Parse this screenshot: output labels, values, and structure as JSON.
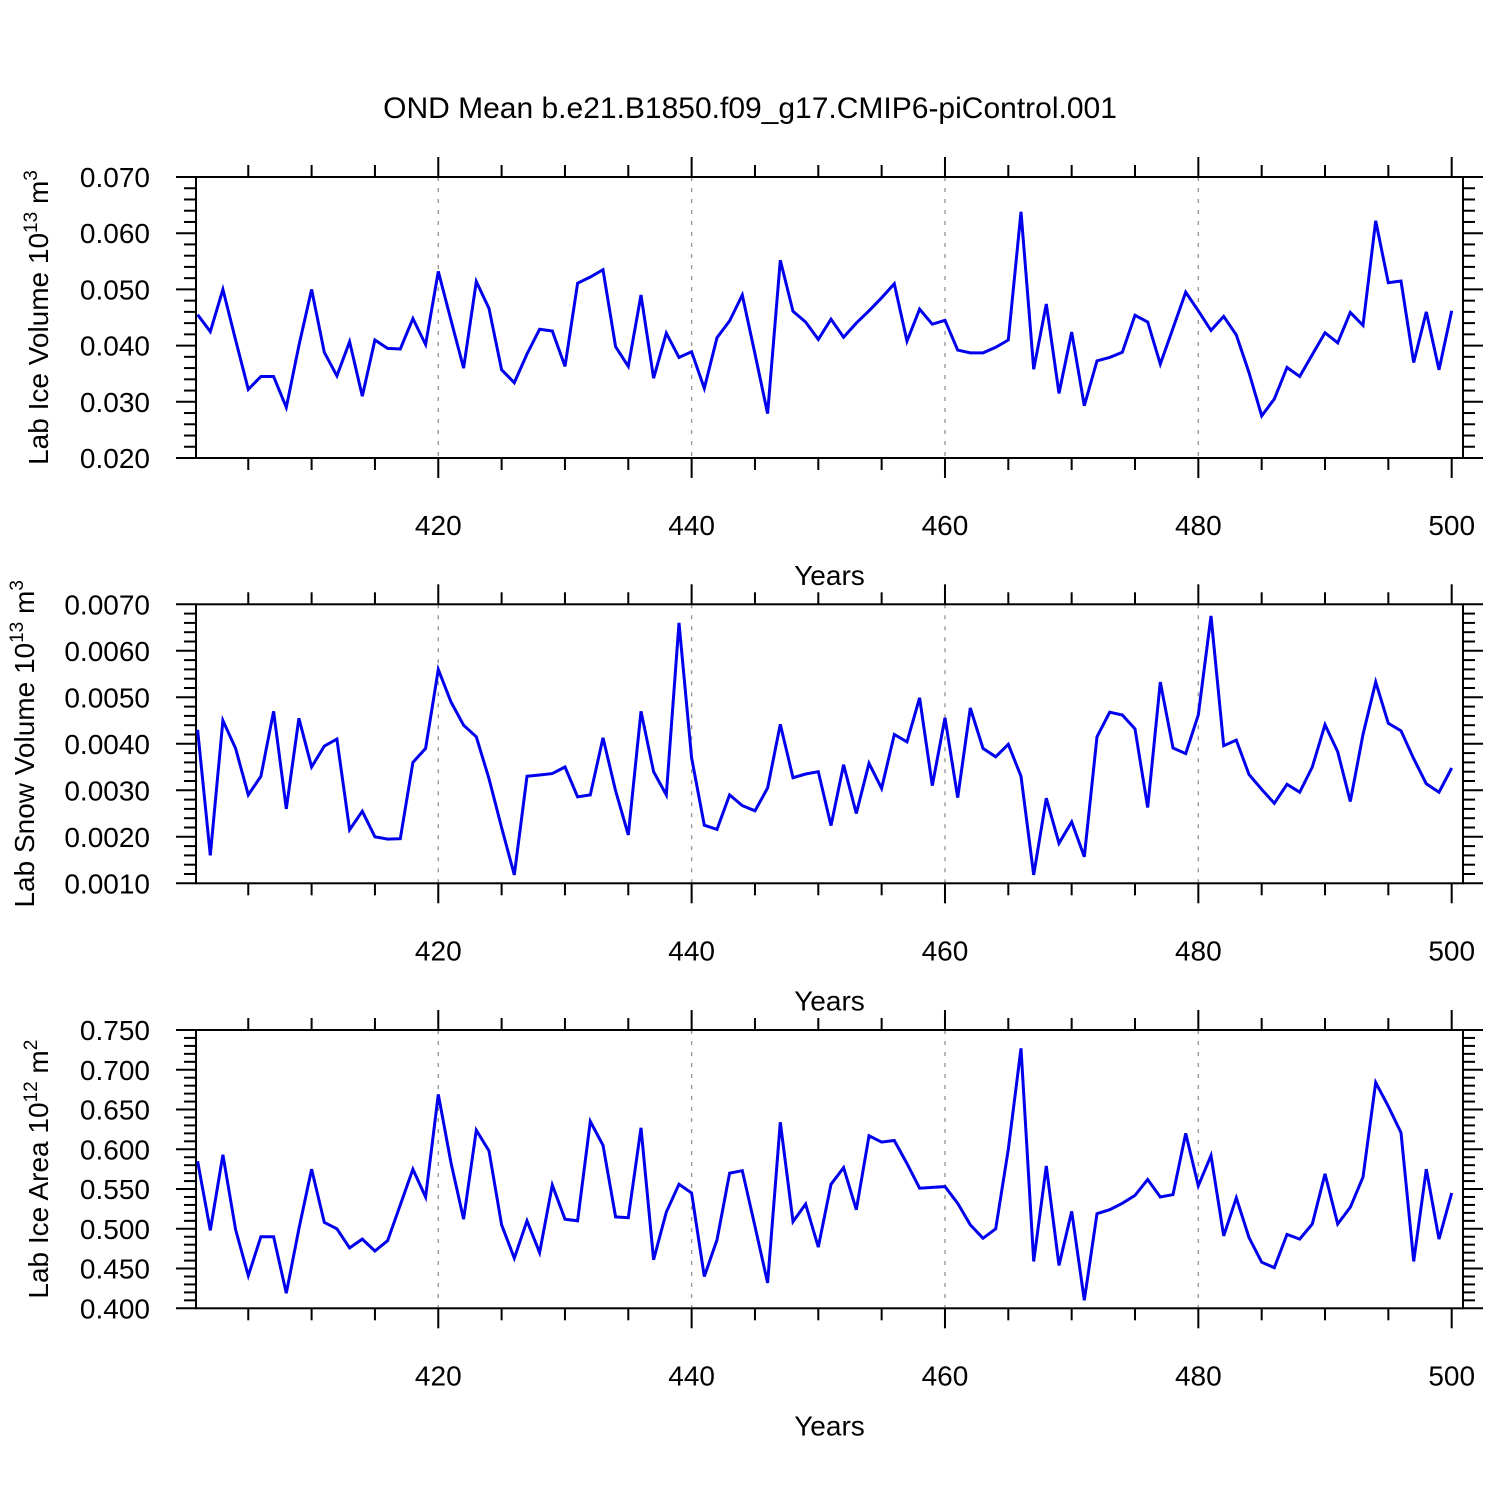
{
  "title": "OND Mean b.e21.B1850.f09_g17.CMIP6-piControl.001",
  "xlabel": "Years",
  "line_color": "#0000ee",
  "grid_color": "#999999",
  "grid_years": [
    420,
    440,
    460,
    480
  ],
  "xtick_labels": [
    "420",
    "440",
    "460",
    "480",
    "500"
  ],
  "xtick_years": [
    420,
    440,
    460,
    480,
    500
  ],
  "xminor_step_years": 5,
  "years_start": 401,
  "years_end": 500,
  "chart_data": [
    {
      "type": "line",
      "name": "lab-ice-volume",
      "ylabel_parts": [
        {
          "t": "Lab Ice Volume 10"
        },
        {
          "t": "13",
          "sup": true
        },
        {
          "t": " m"
        },
        {
          "t": "3",
          "sup": true
        }
      ],
      "ylim": [
        0.02,
        0.07
      ],
      "ytick_labels": [
        "0.020",
        "0.030",
        "0.040",
        "0.050",
        "0.060",
        "0.070"
      ],
      "yminor_step": 0.002,
      "xlabel": "Years",
      "values": [
        0.0455,
        0.0425,
        0.05,
        0.041,
        0.0322,
        0.0345,
        0.0345,
        0.029,
        0.04,
        0.05,
        0.0388,
        0.0346,
        0.0407,
        0.031,
        0.041,
        0.0395,
        0.0394,
        0.0448,
        0.0402,
        0.0532,
        0.0445,
        0.036,
        0.0514,
        0.0466,
        0.0357,
        0.0334,
        0.0385,
        0.0429,
        0.0426,
        0.0363,
        0.0511,
        0.0522,
        0.0535,
        0.0398,
        0.0363,
        0.049,
        0.0342,
        0.0422,
        0.0379,
        0.0389,
        0.0324,
        0.0414,
        0.0444,
        0.049,
        0.0385,
        0.0279,
        0.0552,
        0.0461,
        0.0442,
        0.0411,
        0.0447,
        0.0415,
        0.044,
        0.0462,
        0.0485,
        0.051,
        0.0408,
        0.0465,
        0.0438,
        0.0445,
        0.0392,
        0.0387,
        0.0387,
        0.0397,
        0.041,
        0.0638,
        0.0358,
        0.0474,
        0.0315,
        0.0424,
        0.0293,
        0.0373,
        0.0379,
        0.0388,
        0.0454,
        0.0442,
        0.0367,
        0.0431,
        0.0495,
        0.0462,
        0.0427,
        0.0452,
        0.0419,
        0.0352,
        0.0275,
        0.0305,
        0.0361,
        0.0345,
        0.0384,
        0.0423,
        0.0405,
        0.0459,
        0.0436,
        0.0622,
        0.0512,
        0.0515,
        0.037,
        0.046,
        0.0357,
        0.0462
      ]
    },
    {
      "type": "line",
      "name": "lab-snow-volume",
      "ylabel_parts": [
        {
          "t": "Lab Snow Volume 10"
        },
        {
          "t": "13",
          "sup": true
        },
        {
          "t": " m"
        },
        {
          "t": "3",
          "sup": true
        }
      ],
      "ylim": [
        0.001,
        0.007
      ],
      "ytick_labels": [
        "0.0010",
        "0.0020",
        "0.0030",
        "0.0040",
        "0.0050",
        "0.0060",
        "0.0070"
      ],
      "yminor_step": 0.0002,
      "xlabel": "Years",
      "values": [
        0.0043,
        0.0016,
        0.0045,
        0.0039,
        0.0029,
        0.0033,
        0.0047,
        0.0026,
        0.00455,
        0.0035,
        0.00395,
        0.0041,
        0.00215,
        0.00255,
        0.002,
        0.00195,
        0.00196,
        0.0036,
        0.0039,
        0.0056,
        0.0049,
        0.0044,
        0.00415,
        0.00325,
        0.0022,
        0.00118,
        0.0033,
        0.00333,
        0.00336,
        0.0035,
        0.00286,
        0.0029,
        0.00413,
        0.00299,
        0.00204,
        0.0047,
        0.0034,
        0.0029,
        0.0066,
        0.0037,
        0.00225,
        0.00216,
        0.0029,
        0.00267,
        0.00256,
        0.00305,
        0.00442,
        0.00327,
        0.00335,
        0.0034,
        0.00224,
        0.00355,
        0.0025,
        0.00358,
        0.00304,
        0.0042,
        0.00404,
        0.00499,
        0.0031,
        0.00456,
        0.00284,
        0.00477,
        0.0039,
        0.00372,
        0.00399,
        0.0033,
        0.00118,
        0.00283,
        0.00186,
        0.00232,
        0.00157,
        0.00415,
        0.00468,
        0.00462,
        0.00432,
        0.00263,
        0.00533,
        0.00391,
        0.00379,
        0.00462,
        0.00675,
        0.00396,
        0.00408,
        0.00334,
        0.00302,
        0.00272,
        0.00313,
        0.00296,
        0.0035,
        0.00441,
        0.00383,
        0.00276,
        0.0042,
        0.00533,
        0.00444,
        0.00428,
        0.00368,
        0.00314,
        0.00296,
        0.00348
      ]
    },
    {
      "type": "line",
      "name": "lab-ice-area",
      "ylabel_parts": [
        {
          "t": "Lab Ice Area 10"
        },
        {
          "t": "12",
          "sup": true
        },
        {
          "t": " m"
        },
        {
          "t": "2",
          "sup": true
        }
      ],
      "ylim": [
        0.4,
        0.75
      ],
      "ytick_labels": [
        "0.400",
        "0.450",
        "0.500",
        "0.550",
        "0.600",
        "0.650",
        "0.700",
        "0.750"
      ],
      "yminor_step": 0.01,
      "xlabel": "Years",
      "values": [
        0.585,
        0.498,
        0.593,
        0.499,
        0.441,
        0.49,
        0.49,
        0.419,
        0.5,
        0.575,
        0.508,
        0.5,
        0.476,
        0.487,
        0.472,
        0.485,
        0.53,
        0.575,
        0.54,
        0.669,
        0.583,
        0.512,
        0.624,
        0.598,
        0.505,
        0.463,
        0.51,
        0.47,
        0.555,
        0.512,
        0.51,
        0.635,
        0.605,
        0.515,
        0.514,
        0.627,
        0.461,
        0.521,
        0.556,
        0.545,
        0.44,
        0.486,
        0.57,
        0.573,
        0.503,
        0.432,
        0.634,
        0.509,
        0.531,
        0.477,
        0.556,
        0.577,
        0.524,
        0.617,
        0.609,
        0.611,
        0.582,
        0.551,
        0.552,
        0.553,
        0.532,
        0.505,
        0.488,
        0.5,
        0.6,
        0.727,
        0.459,
        0.579,
        0.454,
        0.522,
        0.41,
        0.519,
        0.524,
        0.532,
        0.542,
        0.562,
        0.54,
        0.543,
        0.62,
        0.554,
        0.592,
        0.491,
        0.539,
        0.489,
        0.458,
        0.451,
        0.493,
        0.487,
        0.506,
        0.569,
        0.506,
        0.527,
        0.565,
        0.684,
        0.654,
        0.621,
        0.459,
        0.575,
        0.487,
        0.545
      ]
    }
  ]
}
